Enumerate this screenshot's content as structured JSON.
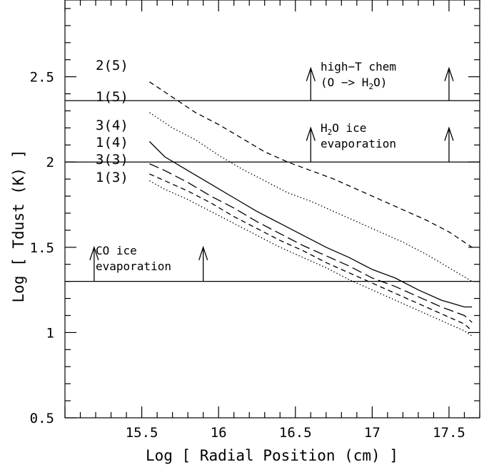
{
  "chart_data": {
    "type": "line",
    "title": "",
    "xlabel": "Log [ Radial Position (cm) ]",
    "ylabel": "Log [ Tdust (K) ]",
    "xlim": [
      15.0,
      17.7
    ],
    "ylim": [
      0.5,
      2.95
    ],
    "x_ticks": [
      15.5,
      16,
      16.5,
      17,
      17.5
    ],
    "x_tick_labels": [
      "15.5",
      "16",
      "16.5",
      "17",
      "17.5"
    ],
    "y_ticks": [
      0.5,
      1,
      1.5,
      2,
      2.5
    ],
    "y_tick_labels": [
      "0.5",
      "1",
      "1.5",
      "2",
      "2.5"
    ],
    "grid": false,
    "series": [
      {
        "name": "2(5)",
        "style": "dashed",
        "x": [
          15.55,
          15.7,
          15.85,
          16.0,
          16.15,
          16.3,
          16.45,
          16.6,
          16.75,
          16.9,
          17.05,
          17.2,
          17.35,
          17.5,
          17.65
        ],
        "y": [
          2.47,
          2.38,
          2.29,
          2.22,
          2.14,
          2.06,
          2.0,
          1.95,
          1.9,
          1.84,
          1.78,
          1.72,
          1.66,
          1.59,
          1.5
        ]
      },
      {
        "name": "1(5)",
        "style": "dotted",
        "x": [
          15.55,
          15.7,
          15.85,
          16.0,
          16.15,
          16.3,
          16.45,
          16.6,
          16.75,
          16.9,
          17.05,
          17.2,
          17.35,
          17.5,
          17.65
        ],
        "y": [
          2.29,
          2.2,
          2.13,
          2.04,
          1.96,
          1.89,
          1.82,
          1.77,
          1.71,
          1.65,
          1.59,
          1.53,
          1.46,
          1.38,
          1.3
        ]
      },
      {
        "name": "3(4)",
        "style": "solid",
        "x": [
          15.55,
          15.65,
          15.8,
          15.95,
          16.1,
          16.25,
          16.4,
          16.55,
          16.7,
          16.85,
          17.0,
          17.15,
          17.3,
          17.45,
          17.6,
          17.65
        ],
        "y": [
          2.12,
          2.03,
          1.95,
          1.87,
          1.79,
          1.71,
          1.64,
          1.57,
          1.5,
          1.44,
          1.37,
          1.32,
          1.25,
          1.19,
          1.15,
          1.15
        ]
      },
      {
        "name": "3(3)",
        "style": "longdash",
        "x": [
          15.55,
          15.65,
          15.8,
          15.95,
          16.1,
          16.25,
          16.4,
          16.55,
          16.7,
          16.85,
          17.0,
          17.15,
          17.3,
          17.45,
          17.6,
          17.65
        ],
        "y": [
          1.99,
          1.95,
          1.88,
          1.8,
          1.73,
          1.65,
          1.58,
          1.51,
          1.45,
          1.39,
          1.32,
          1.27,
          1.21,
          1.15,
          1.1,
          1.06
        ]
      },
      {
        "name": "1(4)",
        "style": "dashed",
        "x": [
          15.55,
          15.65,
          15.8,
          15.95,
          16.1,
          16.25,
          16.4,
          16.55,
          16.7,
          16.85,
          17.0,
          17.15,
          17.3,
          17.45,
          17.6,
          17.65
        ],
        "y": [
          1.93,
          1.89,
          1.83,
          1.76,
          1.68,
          1.61,
          1.54,
          1.48,
          1.41,
          1.35,
          1.29,
          1.23,
          1.17,
          1.11,
          1.05,
          1.01
        ]
      },
      {
        "name": "1(3)",
        "style": "dotted",
        "x": [
          15.55,
          15.65,
          15.8,
          15.95,
          16.1,
          16.25,
          16.4,
          16.55,
          16.7,
          16.85,
          17.0,
          17.15,
          17.3,
          17.45,
          17.6,
          17.65
        ],
        "y": [
          1.89,
          1.84,
          1.78,
          1.71,
          1.64,
          1.57,
          1.5,
          1.44,
          1.38,
          1.31,
          1.25,
          1.19,
          1.13,
          1.07,
          1.01,
          0.98
        ]
      }
    ],
    "hlines": [
      {
        "y": 2.36
      },
      {
        "y": 2.0
      },
      {
        "y": 1.3
      }
    ],
    "arrows": [
      {
        "x": 16.6,
        "y0": 2.36,
        "y1": 2.55
      },
      {
        "x": 17.5,
        "y0": 2.36,
        "y1": 2.55
      },
      {
        "x": 16.6,
        "y0": 2.0,
        "y1": 2.2
      },
      {
        "x": 17.5,
        "y0": 2.0,
        "y1": 2.2
      },
      {
        "x": 15.19,
        "y0": 1.3,
        "y1": 1.5
      },
      {
        "x": 15.9,
        "y0": 1.3,
        "y1": 1.5
      }
    ],
    "curve_labels": [
      "2(5)",
      "1(5)",
      "3(4)",
      "1(4)",
      "3(3)",
      "1(3)"
    ],
    "annotations": {
      "highT_line1": "high−T chem",
      "highT_line2_pre": "(O −> H",
      "highT_line2_sub": "2",
      "highT_line2_post": "O)",
      "h2o_line1_pre": "H",
      "h2o_line1_sub": "2",
      "h2o_line1_post": "O ice",
      "h2o_line2": "evaporation",
      "co_line1": "CO ice",
      "co_line2": "evaporation"
    }
  }
}
